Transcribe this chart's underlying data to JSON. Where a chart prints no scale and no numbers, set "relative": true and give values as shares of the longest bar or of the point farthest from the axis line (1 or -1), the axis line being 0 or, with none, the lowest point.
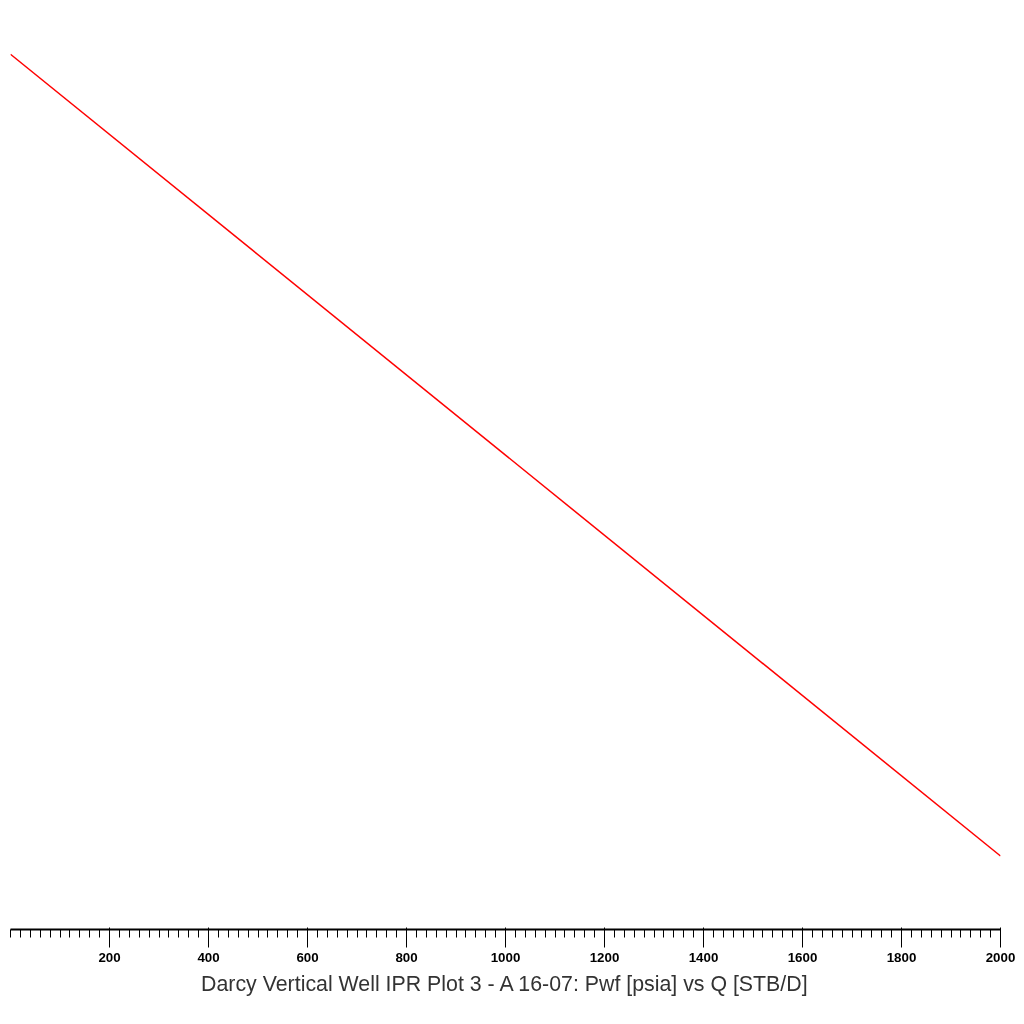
{
  "chart_data": {
    "type": "line",
    "title": "Darcy Vertical Well IPR Plot 3 - A 16-07: Pwf [psia] vs Q [STB/D]",
    "relative": true,
    "tick_labels": "x",
    "xlim": [
      0,
      2000
    ],
    "xticks": [
      200,
      400,
      600,
      800,
      1000,
      1200,
      1400,
      1600,
      1800,
      2000
    ],
    "series": [
      {
        "color": "#ff0000",
        "x": [
          0,
          1000,
          2000
        ],
        "values": [
          1,
          0.542,
          0.084
        ]
      }
    ],
    "grid": false,
    "marker": "none",
    "line_style": "solid"
  }
}
